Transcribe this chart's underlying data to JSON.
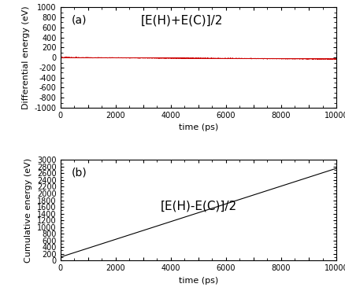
{
  "title_a": "[E(H)+E(C)]/2",
  "title_b": "[E(H)-E(C)]/2",
  "label_a": "(a)",
  "label_b": "(b)",
  "ylabel_a": "Differential energy (eV)",
  "ylabel_b": "Cumulative energy (eV)",
  "xlabel": "time (ps)",
  "xlim": [
    0,
    10000
  ],
  "ylim_a": [
    -1000,
    1000
  ],
  "ylim_b": [
    0,
    3000
  ],
  "xticks": [
    0,
    1000,
    2000,
    3000,
    4000,
    5000,
    6000,
    7000,
    8000,
    9000,
    10000
  ],
  "xticklabels": [
    "0",
    "",
    "2000",
    "",
    "4000",
    "",
    "6000",
    "",
    "8000",
    "",
    "10000"
  ],
  "yticks_a": [
    -1000,
    -800,
    -600,
    -400,
    -200,
    0,
    200,
    400,
    600,
    800,
    1000
  ],
  "yticks_b": [
    0,
    200,
    400,
    600,
    800,
    1000,
    1200,
    1400,
    1600,
    1800,
    2000,
    2200,
    2400,
    2600,
    2800,
    3000
  ],
  "line_a_color": "#cc0000",
  "line_b_color": "#000000",
  "noise_amplitude": 3.5,
  "cumulative_slope": 0.265,
  "cumulative_start": 100,
  "n_points": 5000,
  "background_color": "#ffffff",
  "tick_fontsize": 7,
  "label_fontsize": 8,
  "annotation_fontsize": 10,
  "title_fontsize": 11,
  "font_family": "DejaVu Sans"
}
